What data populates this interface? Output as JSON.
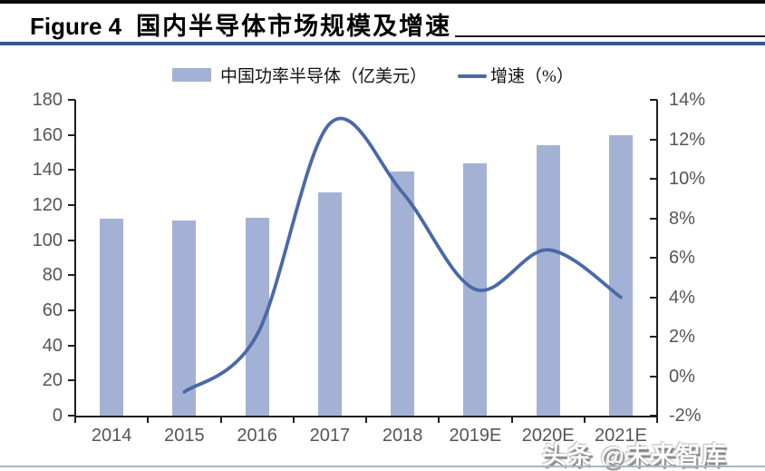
{
  "figure": {
    "title_prefix": "Figure 4",
    "title": "国内半导体市场规模及增速"
  },
  "watermark": "头条 @未来智库",
  "chart_data": {
    "type": "combo-bar-line",
    "title": "国内半导体市场规模及增速",
    "categories": [
      "2014",
      "2015",
      "2016",
      "2017",
      "2018",
      "2019E",
      "2020E",
      "2021E"
    ],
    "series": [
      {
        "name": "中国功率半导体（亿美元）",
        "type": "bar",
        "axis": "left",
        "color": "#a3b2d4",
        "values": [
          112,
          111,
          113,
          127,
          139,
          144,
          154,
          160
        ]
      },
      {
        "name": "增速（%）",
        "type": "line",
        "axis": "right",
        "color": "#4b69a7",
        "values": [
          null,
          -0.8,
          2.1,
          12.8,
          9.3,
          4.4,
          6.4,
          4.0
        ]
      }
    ],
    "left_axis": {
      "min": 0,
      "max": 180,
      "step": 20,
      "tick_labels": [
        "0",
        "20",
        "40",
        "60",
        "80",
        "100",
        "120",
        "140",
        "160",
        "180"
      ]
    },
    "right_axis": {
      "min": -2,
      "max": 14,
      "step": 2,
      "tick_labels": [
        "-2%",
        "0%",
        "2%",
        "4%",
        "6%",
        "8%",
        "10%",
        "12%",
        "14%"
      ]
    },
    "legend_position": "top",
    "grid": false
  }
}
